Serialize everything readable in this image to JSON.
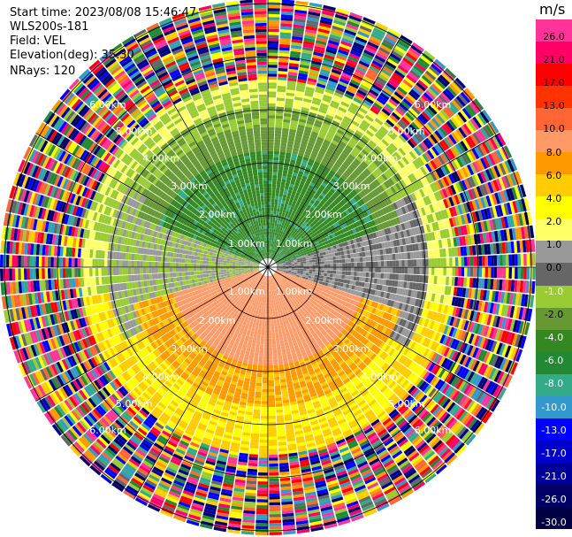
{
  "info": {
    "start_time": "Start time: 2023/08/08 15:46:47",
    "instrument": "WLS200s-181",
    "field": "Field: VEL",
    "elevation": "Elevation(deg): 35.30",
    "nrays": "NRays: 120"
  },
  "colorbar": {
    "unit": "m/s",
    "ticks": [
      "26.0",
      "21.0",
      "17.0",
      "13.0",
      "10.0",
      "8.0",
      "6.0",
      "4.0",
      "2.0",
      "1.0",
      "0.0",
      "-1.0",
      "-2.0",
      "-4.0",
      "-6.0",
      "-8.0",
      "-10.0",
      "-13.0",
      "-17.0",
      "-21.0",
      "-26.0",
      "-30.0"
    ],
    "colors": [
      "#ff3399",
      "#ff0066",
      "#ff0000",
      "#ff3300",
      "#ff6633",
      "#ff9966",
      "#ff9900",
      "#ffcc00",
      "#ffff00",
      "#ffff66",
      "#999999",
      "#666666",
      "#99cc33",
      "#669933",
      "#338822",
      "#228833",
      "#33aa88",
      "#3399cc",
      "#0000ff",
      "#0000cc",
      "#000099",
      "#000066",
      "#000044"
    ]
  },
  "range_rings": {
    "labels": [
      "1.00km",
      "2.00km",
      "3.00km",
      "4.00km",
      "5.00km",
      "6.00km"
    ]
  },
  "nrays": 120
}
